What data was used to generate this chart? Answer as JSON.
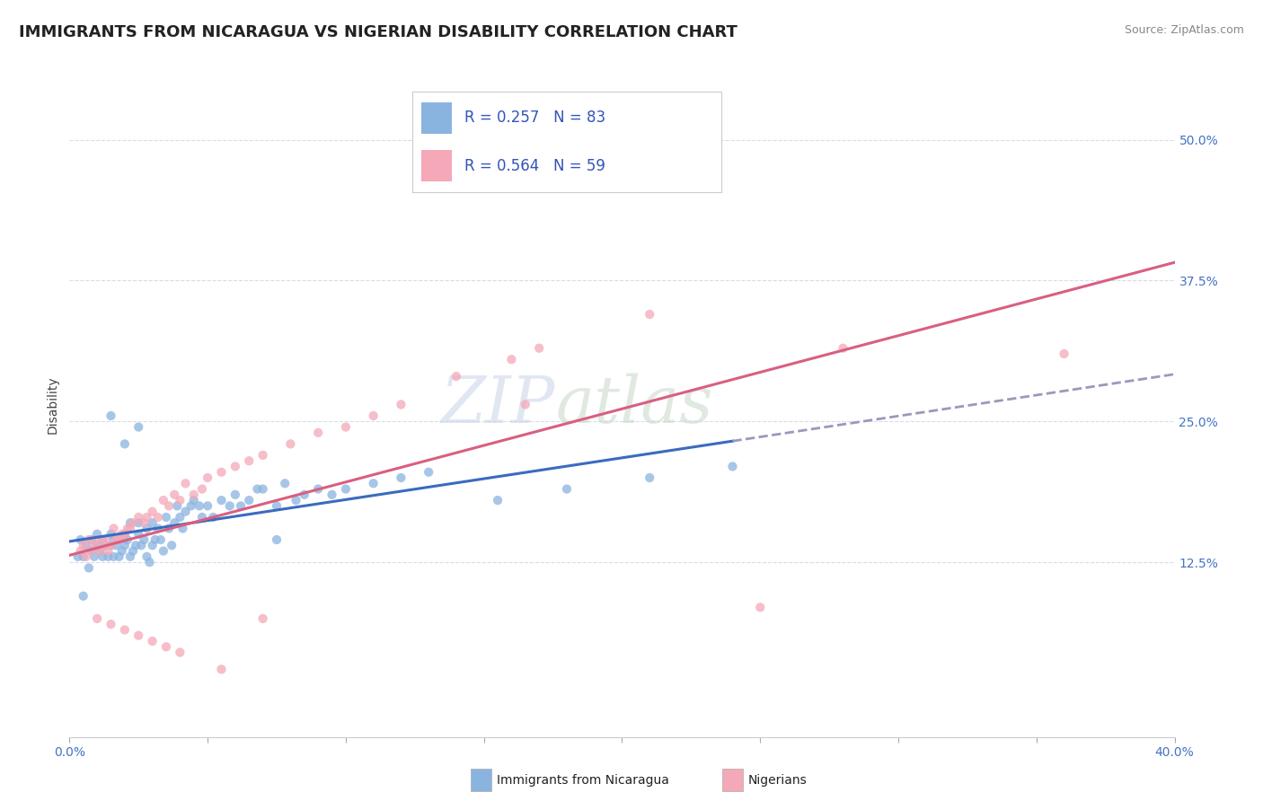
{
  "title": "IMMIGRANTS FROM NICARAGUA VS NIGERIAN DISABILITY CORRELATION CHART",
  "source": "Source: ZipAtlas.com",
  "ylabel": "Disability",
  "yticks_labels": [
    "12.5%",
    "25.0%",
    "37.5%",
    "50.0%"
  ],
  "ytick_vals": [
    0.125,
    0.25,
    0.375,
    0.5
  ],
  "xlim": [
    0.0,
    0.4
  ],
  "ylim": [
    -0.03,
    0.56
  ],
  "blue_color": "#8ab4e0",
  "pink_color": "#f4a8b8",
  "blue_line_color": "#3a6bbf",
  "pink_line_color": "#d95f80",
  "dashed_line_color": "#9999bb",
  "legend_R1": "R = 0.257",
  "legend_N1": "N = 83",
  "legend_R2": "R = 0.564",
  "legend_N2": "N = 59",
  "watermark_part1": "ZIP",
  "watermark_part2": "atlas",
  "title_fontsize": 13,
  "axis_label_fontsize": 10,
  "tick_fontsize": 10,
  "legend_fontsize": 12,
  "watermark_fontsize": 52,
  "grid_color": "#d8dce8",
  "background_color": "#ffffff",
  "blue_scatter_x": [
    0.003,
    0.004,
    0.005,
    0.006,
    0.007,
    0.008,
    0.008,
    0.009,
    0.01,
    0.01,
    0.011,
    0.012,
    0.012,
    0.013,
    0.014,
    0.015,
    0.015,
    0.016,
    0.016,
    0.017,
    0.018,
    0.018,
    0.019,
    0.02,
    0.02,
    0.021,
    0.022,
    0.022,
    0.023,
    0.024,
    0.025,
    0.025,
    0.026,
    0.027,
    0.028,
    0.028,
    0.029,
    0.03,
    0.03,
    0.031,
    0.032,
    0.033,
    0.034,
    0.035,
    0.036,
    0.037,
    0.038,
    0.039,
    0.04,
    0.041,
    0.042,
    0.044,
    0.045,
    0.047,
    0.048,
    0.05,
    0.052,
    0.055,
    0.058,
    0.06,
    0.062,
    0.065,
    0.068,
    0.07,
    0.075,
    0.078,
    0.082,
    0.085,
    0.09,
    0.095,
    0.1,
    0.11,
    0.12,
    0.13,
    0.015,
    0.02,
    0.025,
    0.075,
    0.155,
    0.18,
    0.21,
    0.24,
    0.005
  ],
  "blue_scatter_y": [
    0.13,
    0.145,
    0.13,
    0.14,
    0.12,
    0.135,
    0.145,
    0.13,
    0.15,
    0.14,
    0.135,
    0.13,
    0.145,
    0.14,
    0.13,
    0.14,
    0.15,
    0.145,
    0.13,
    0.14,
    0.145,
    0.13,
    0.135,
    0.15,
    0.14,
    0.145,
    0.16,
    0.13,
    0.135,
    0.14,
    0.15,
    0.16,
    0.14,
    0.145,
    0.155,
    0.13,
    0.125,
    0.16,
    0.14,
    0.145,
    0.155,
    0.145,
    0.135,
    0.165,
    0.155,
    0.14,
    0.16,
    0.175,
    0.165,
    0.155,
    0.17,
    0.175,
    0.18,
    0.175,
    0.165,
    0.175,
    0.165,
    0.18,
    0.175,
    0.185,
    0.175,
    0.18,
    0.19,
    0.19,
    0.175,
    0.195,
    0.18,
    0.185,
    0.19,
    0.185,
    0.19,
    0.195,
    0.2,
    0.205,
    0.255,
    0.23,
    0.245,
    0.145,
    0.18,
    0.19,
    0.2,
    0.21,
    0.095
  ],
  "pink_scatter_x": [
    0.004,
    0.005,
    0.006,
    0.007,
    0.008,
    0.009,
    0.01,
    0.011,
    0.012,
    0.013,
    0.014,
    0.015,
    0.016,
    0.017,
    0.018,
    0.019,
    0.02,
    0.021,
    0.022,
    0.023,
    0.025,
    0.027,
    0.028,
    0.03,
    0.032,
    0.034,
    0.036,
    0.038,
    0.04,
    0.042,
    0.045,
    0.048,
    0.05,
    0.055,
    0.06,
    0.065,
    0.07,
    0.08,
    0.09,
    0.1,
    0.11,
    0.12,
    0.14,
    0.16,
    0.17,
    0.01,
    0.015,
    0.02,
    0.025,
    0.03,
    0.035,
    0.04,
    0.055,
    0.07,
    0.165,
    0.21,
    0.28,
    0.36,
    0.25
  ],
  "pink_scatter_y": [
    0.135,
    0.14,
    0.13,
    0.145,
    0.135,
    0.14,
    0.145,
    0.135,
    0.14,
    0.145,
    0.135,
    0.14,
    0.155,
    0.145,
    0.145,
    0.15,
    0.15,
    0.155,
    0.155,
    0.16,
    0.165,
    0.16,
    0.165,
    0.17,
    0.165,
    0.18,
    0.175,
    0.185,
    0.18,
    0.195,
    0.185,
    0.19,
    0.2,
    0.205,
    0.21,
    0.215,
    0.22,
    0.23,
    0.24,
    0.245,
    0.255,
    0.265,
    0.29,
    0.305,
    0.315,
    0.075,
    0.07,
    0.065,
    0.06,
    0.055,
    0.05,
    0.045,
    0.03,
    0.075,
    0.265,
    0.345,
    0.315,
    0.31,
    0.085
  ]
}
